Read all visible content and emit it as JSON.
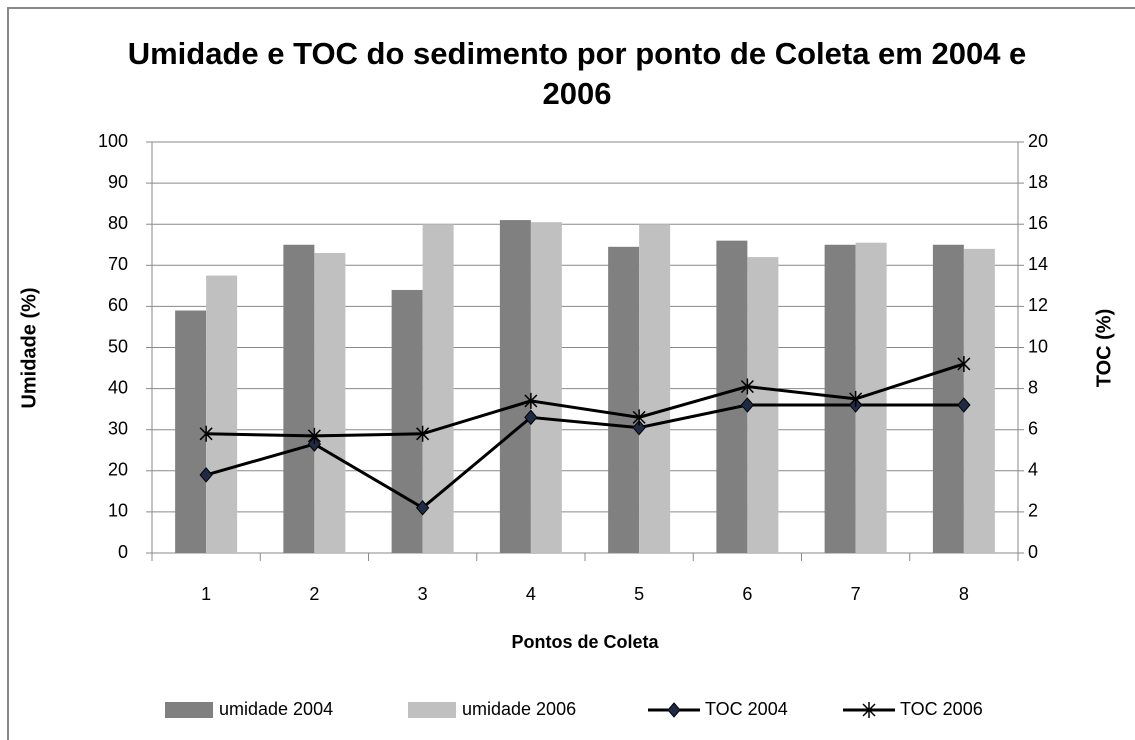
{
  "chart_data": {
    "type": "bar",
    "title": "Umidade e TOC do sedimento por ponto de Coleta em 2004 e 2006",
    "x_label": "Pontos de Coleta",
    "y_label": "Umidade (%)",
    "y2_label": "TOC (%)",
    "categories": [
      "1",
      "2",
      "3",
      "4",
      "5",
      "6",
      "7",
      "8"
    ],
    "series": [
      {
        "name": "umidade 2004",
        "type": "bar",
        "color": "#808080",
        "values": [
          59,
          75,
          64,
          81,
          74.5,
          76,
          75,
          75
        ]
      },
      {
        "name": "umidade 2006",
        "type": "bar",
        "color": "#c0c0c0",
        "values": [
          67.5,
          73,
          80,
          80.5,
          80,
          72,
          75.5,
          74
        ]
      },
      {
        "name": "TOC 2004",
        "type": "line",
        "marker": "diamond",
        "color": "#000000",
        "axis": "y2",
        "values": [
          3.8,
          5.3,
          2.2,
          6.6,
          6.1,
          7.2,
          7.2,
          7.2
        ]
      },
      {
        "name": "TOC 2006",
        "type": "line",
        "marker": "star",
        "color": "#000000",
        "axis": "y2",
        "values": [
          5.8,
          5.7,
          5.8,
          7.4,
          6.6,
          8.1,
          7.5,
          9.2
        ]
      }
    ],
    "ylim": [
      0,
      100
    ],
    "yticks": [
      0,
      10,
      20,
      30,
      40,
      50,
      60,
      70,
      80,
      90,
      100
    ],
    "y2lim": [
      0,
      20
    ],
    "y2ticks": [
      0,
      2,
      4,
      6,
      8,
      10,
      12,
      14,
      16,
      18,
      20
    ],
    "grid": true,
    "legend": "bottom"
  }
}
